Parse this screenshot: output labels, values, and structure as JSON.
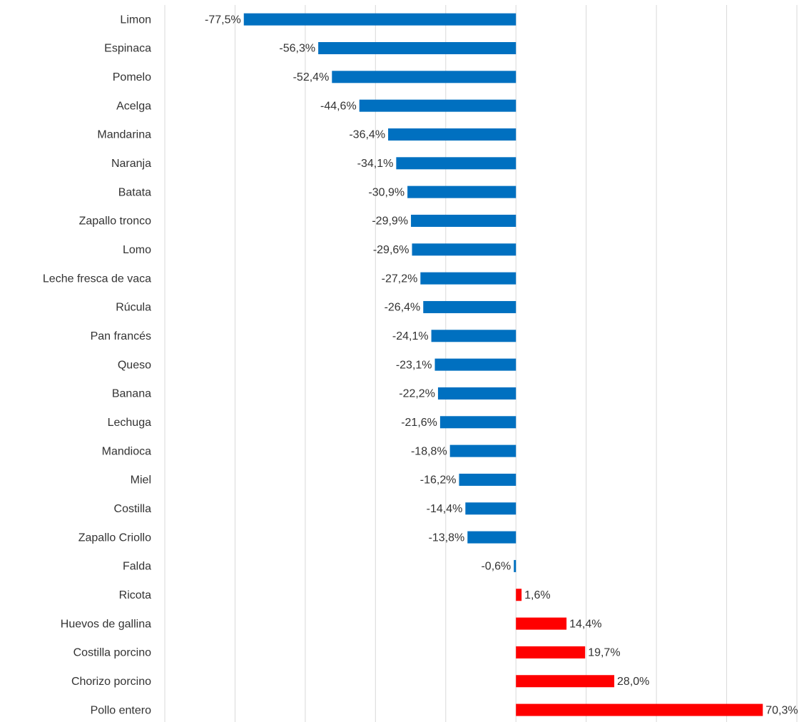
{
  "chart_data": {
    "type": "barh",
    "categories": [
      "Limon",
      "Espinaca",
      "Pomelo",
      "Acelga",
      "Mandarina",
      "Naranja",
      "Batata",
      "Zapallo tronco",
      "Lomo",
      "Leche fresca de vaca",
      "Rúcula",
      "Pan francés",
      "Queso",
      "Banana",
      "Lechuga",
      "Mandioca",
      "Miel",
      "Costilla",
      "Zapallo Criollo",
      "Falda",
      "Ricota",
      "Huevos de gallina",
      "Costilla porcino",
      "Chorizo porcino",
      "Pollo entero"
    ],
    "values": [
      -77.5,
      -56.3,
      -52.4,
      -44.6,
      -36.4,
      -34.1,
      -30.9,
      -29.9,
      -29.6,
      -27.2,
      -26.4,
      -24.1,
      -23.1,
      -22.2,
      -21.6,
      -18.8,
      -16.2,
      -14.4,
      -13.8,
      -0.6,
      1.6,
      14.4,
      19.7,
      28.0,
      70.3
    ],
    "value_labels": [
      "-77,5%",
      "-56,3%",
      "-52,4%",
      "-44,6%",
      "-36,4%",
      "-34,1%",
      "-30,9%",
      "-29,9%",
      "-29,6%",
      "-27,2%",
      "-26,4%",
      "-24,1%",
      "-23,1%",
      "-22,2%",
      "-21,6%",
      "-18,8%",
      "-16,2%",
      "-14,4%",
      "-13,8%",
      "-0,6%",
      "1,6%",
      "14,4%",
      "19,7%",
      "28,0%",
      "70,3%"
    ],
    "negative_color": "#0070c0",
    "positive_color": "#ff0000",
    "xlim": [
      -100,
      80
    ],
    "xticks": [
      -100,
      -80,
      -60,
      -40,
      -20,
      0,
      20,
      40,
      60,
      80
    ],
    "grid": true
  }
}
